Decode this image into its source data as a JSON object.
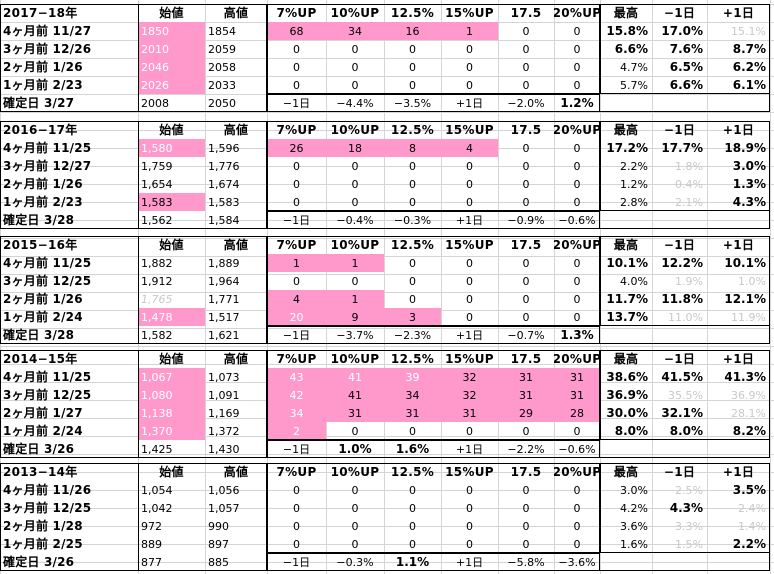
{
  "colors": {
    "highlight": "#ff99cc",
    "grid": "#d4d4d4",
    "muted": "#c8c8c8"
  },
  "headers": [
    "始値",
    "高値",
    "7%UP",
    "10%UP",
    "12.5%",
    "15%UP",
    "17.5",
    "20%UP",
    "最高",
    "−1日",
    "+1日"
  ],
  "sections": [
    {
      "year": "2017−18年",
      "rows": [
        {
          "label": "4ヶ月前 11/27",
          "cells": [
            {
              "v": "1850",
              "s": "pw"
            },
            {
              "v": "1854"
            },
            {
              "v": "68",
              "s": "p"
            },
            {
              "v": "34",
              "s": "p"
            },
            {
              "v": "16",
              "s": "p"
            },
            {
              "v": "1",
              "s": "p"
            },
            {
              "v": "0"
            },
            {
              "v": "0"
            },
            {
              "v": "15.8%",
              "s": "b"
            },
            {
              "v": "17.0%",
              "s": "b"
            },
            {
              "v": "15.1%",
              "s": "g"
            }
          ]
        },
        {
          "label": "3ヶ月前 12/26",
          "cells": [
            {
              "v": "2010",
              "s": "pw"
            },
            {
              "v": "2059"
            },
            {
              "v": "0"
            },
            {
              "v": "0"
            },
            {
              "v": "0"
            },
            {
              "v": "0"
            },
            {
              "v": "0"
            },
            {
              "v": "0"
            },
            {
              "v": "6.6%",
              "s": "b"
            },
            {
              "v": "7.6%",
              "s": "b"
            },
            {
              "v": "8.7%",
              "s": "b"
            }
          ]
        },
        {
          "label": "2ヶ月前 1/26",
          "cells": [
            {
              "v": "2046",
              "s": "pw"
            },
            {
              "v": "2058"
            },
            {
              "v": "0"
            },
            {
              "v": "0"
            },
            {
              "v": "0"
            },
            {
              "v": "0"
            },
            {
              "v": "0"
            },
            {
              "v": "0"
            },
            {
              "v": "4.7%"
            },
            {
              "v": "6.5%",
              "s": "b"
            },
            {
              "v": "6.2%",
              "s": "b"
            }
          ]
        },
        {
          "label": "1ヶ月前 2/23",
          "cells": [
            {
              "v": "2026",
              "s": "pw"
            },
            {
              "v": "2033"
            },
            {
              "v": "0"
            },
            {
              "v": "0"
            },
            {
              "v": "0"
            },
            {
              "v": "0"
            },
            {
              "v": "0"
            },
            {
              "v": "0"
            },
            {
              "v": "5.7%"
            },
            {
              "v": "6.6%",
              "s": "b"
            },
            {
              "v": "6.1%",
              "s": "b"
            }
          ]
        },
        {
          "label": "確定日 3/27",
          "cells": [
            {
              "v": "2008"
            },
            {
              "v": "2050"
            },
            {
              "v": "−1日"
            },
            {
              "v": "−4.4%"
            },
            {
              "v": "−3.5%"
            },
            {
              "v": "+1日"
            },
            {
              "v": "−2.0%"
            },
            {
              "v": "1.2%",
              "s": "b"
            },
            {
              "v": ""
            },
            {
              "v": ""
            },
            {
              "v": ""
            }
          ]
        }
      ]
    },
    {
      "year": "2016−17年",
      "rows": [
        {
          "label": "4ヶ月前 11/25",
          "cells": [
            {
              "v": "1,580",
              "s": "pw"
            },
            {
              "v": "1,596"
            },
            {
              "v": "26",
              "s": "p"
            },
            {
              "v": "18",
              "s": "p"
            },
            {
              "v": "8",
              "s": "p"
            },
            {
              "v": "4",
              "s": "p"
            },
            {
              "v": "0"
            },
            {
              "v": "0"
            },
            {
              "v": "17.2%",
              "s": "b"
            },
            {
              "v": "17.7%",
              "s": "b"
            },
            {
              "v": "18.9%",
              "s": "b"
            }
          ]
        },
        {
          "label": "3ヶ月前 12/27",
          "cells": [
            {
              "v": "1,759"
            },
            {
              "v": "1,776"
            },
            {
              "v": "0"
            },
            {
              "v": "0"
            },
            {
              "v": "0"
            },
            {
              "v": "0"
            },
            {
              "v": "0"
            },
            {
              "v": "0"
            },
            {
              "v": "2.2%"
            },
            {
              "v": "1.8%",
              "s": "g"
            },
            {
              "v": "3.0%",
              "s": "b"
            }
          ]
        },
        {
          "label": "2ヶ月前 1/26",
          "cells": [
            {
              "v": "1,654"
            },
            {
              "v": "1,674"
            },
            {
              "v": "0"
            },
            {
              "v": "0"
            },
            {
              "v": "0"
            },
            {
              "v": "0"
            },
            {
              "v": "0"
            },
            {
              "v": "0"
            },
            {
              "v": "1.2%"
            },
            {
              "v": "0.4%",
              "s": "g"
            },
            {
              "v": "1.3%",
              "s": "b"
            }
          ]
        },
        {
          "label": "1ヶ月前 2/23",
          "cells": [
            {
              "v": "1,583",
              "s": "p"
            },
            {
              "v": "1,583"
            },
            {
              "v": "0"
            },
            {
              "v": "0"
            },
            {
              "v": "0"
            },
            {
              "v": "0"
            },
            {
              "v": "0"
            },
            {
              "v": "0"
            },
            {
              "v": "2.8%"
            },
            {
              "v": "2.1%",
              "s": "g"
            },
            {
              "v": "4.3%",
              "s": "b"
            }
          ]
        },
        {
          "label": "確定日 3/28",
          "cells": [
            {
              "v": "1,562"
            },
            {
              "v": "1,584"
            },
            {
              "v": "−1日"
            },
            {
              "v": "−0.4%"
            },
            {
              "v": "−0.3%"
            },
            {
              "v": "+1日"
            },
            {
              "v": "−0.9%"
            },
            {
              "v": "−0.6%"
            },
            {
              "v": ""
            },
            {
              "v": ""
            },
            {
              "v": ""
            }
          ]
        }
      ]
    },
    {
      "year": "2015−16年",
      "rows": [
        {
          "label": "4ヶ月前 11/25",
          "cells": [
            {
              "v": "1,882"
            },
            {
              "v": "1,889"
            },
            {
              "v": "1",
              "s": "p"
            },
            {
              "v": "1",
              "s": "p"
            },
            {
              "v": "0"
            },
            {
              "v": "0"
            },
            {
              "v": "0"
            },
            {
              "v": "0"
            },
            {
              "v": "10.1%",
              "s": "b"
            },
            {
              "v": "12.2%",
              "s": "b"
            },
            {
              "v": "10.1%",
              "s": "b"
            }
          ]
        },
        {
          "label": "3ヶ月前 12/25",
          "cells": [
            {
              "v": "1,912"
            },
            {
              "v": "1,964"
            },
            {
              "v": "0"
            },
            {
              "v": "0"
            },
            {
              "v": "0"
            },
            {
              "v": "0"
            },
            {
              "v": "0"
            },
            {
              "v": "0"
            },
            {
              "v": "4.0%"
            },
            {
              "v": "1.9%",
              "s": "g"
            },
            {
              "v": "1.0%",
              "s": "g"
            }
          ]
        },
        {
          "label": "2ヶ月前 1/26",
          "cells": [
            {
              "v": "1,765",
              "s": "gi"
            },
            {
              "v": "1,771"
            },
            {
              "v": "4",
              "s": "p"
            },
            {
              "v": "1",
              "s": "p"
            },
            {
              "v": "0"
            },
            {
              "v": "0"
            },
            {
              "v": "0"
            },
            {
              "v": "0"
            },
            {
              "v": "11.7%",
              "s": "b"
            },
            {
              "v": "11.8%",
              "s": "b"
            },
            {
              "v": "12.1%",
              "s": "b"
            }
          ]
        },
        {
          "label": "1ヶ月前 2/24",
          "cells": [
            {
              "v": "1,478",
              "s": "pw"
            },
            {
              "v": "1,517"
            },
            {
              "v": "20",
              "s": "pw"
            },
            {
              "v": "9",
              "s": "p"
            },
            {
              "v": "3",
              "s": "p"
            },
            {
              "v": "0"
            },
            {
              "v": "0"
            },
            {
              "v": "0"
            },
            {
              "v": "13.7%",
              "s": "b"
            },
            {
              "v": "11.0%",
              "s": "g"
            },
            {
              "v": "11.9%",
              "s": "g"
            }
          ]
        },
        {
          "label": "確定日 3/28",
          "cells": [
            {
              "v": "1,582"
            },
            {
              "v": "1,621"
            },
            {
              "v": "−1日"
            },
            {
              "v": "−3.7%"
            },
            {
              "v": "−2.3%"
            },
            {
              "v": "+1日"
            },
            {
              "v": "−0.7%"
            },
            {
              "v": "1.3%",
              "s": "b"
            },
            {
              "v": ""
            },
            {
              "v": ""
            },
            {
              "v": ""
            }
          ]
        }
      ]
    },
    {
      "year": "2014−15年",
      "rows": [
        {
          "label": "4ヶ月前 11/25",
          "cells": [
            {
              "v": "1,067",
              "s": "pw"
            },
            {
              "v": "1,073"
            },
            {
              "v": "43",
              "s": "pw"
            },
            {
              "v": "41",
              "s": "pw"
            },
            {
              "v": "39",
              "s": "pw"
            },
            {
              "v": "32",
              "s": "p"
            },
            {
              "v": "31",
              "s": "p"
            },
            {
              "v": "31",
              "s": "p"
            },
            {
              "v": "38.6%",
              "s": "b"
            },
            {
              "v": "41.5%",
              "s": "b"
            },
            {
              "v": "41.3%",
              "s": "b"
            }
          ]
        },
        {
          "label": "3ヶ月前 12/25",
          "cells": [
            {
              "v": "1,080",
              "s": "pw"
            },
            {
              "v": "1,091"
            },
            {
              "v": "42",
              "s": "pw"
            },
            {
              "v": "41",
              "s": "p"
            },
            {
              "v": "34",
              "s": "p"
            },
            {
              "v": "32",
              "s": "p"
            },
            {
              "v": "31",
              "s": "p"
            },
            {
              "v": "31",
              "s": "p"
            },
            {
              "v": "36.9%",
              "s": "b"
            },
            {
              "v": "35.5%",
              "s": "g"
            },
            {
              "v": "36.9%",
              "s": "g"
            }
          ]
        },
        {
          "label": "2ヶ月前 1/27",
          "cells": [
            {
              "v": "1,138",
              "s": "pw"
            },
            {
              "v": "1,169"
            },
            {
              "v": "34",
              "s": "pw"
            },
            {
              "v": "31",
              "s": "p"
            },
            {
              "v": "31",
              "s": "p"
            },
            {
              "v": "31",
              "s": "p"
            },
            {
              "v": "29",
              "s": "p"
            },
            {
              "v": "28",
              "s": "p"
            },
            {
              "v": "30.0%",
              "s": "b"
            },
            {
              "v": "32.1%",
              "s": "b"
            },
            {
              "v": "28.1%",
              "s": "g"
            }
          ]
        },
        {
          "label": "1ヶ月前 2/24",
          "cells": [
            {
              "v": "1,370",
              "s": "pw"
            },
            {
              "v": "1,372"
            },
            {
              "v": "2",
              "s": "pw"
            },
            {
              "v": "0"
            },
            {
              "v": "0"
            },
            {
              "v": "0"
            },
            {
              "v": "0"
            },
            {
              "v": "0"
            },
            {
              "v": "8.0%",
              "s": "b"
            },
            {
              "v": "8.0%",
              "s": "b"
            },
            {
              "v": "8.2%",
              "s": "b"
            }
          ]
        },
        {
          "label": "確定日 3/26",
          "cells": [
            {
              "v": "1,425"
            },
            {
              "v": "1,430"
            },
            {
              "v": "−1日"
            },
            {
              "v": "1.0%",
              "s": "b"
            },
            {
              "v": "1.6%",
              "s": "b"
            },
            {
              "v": "+1日"
            },
            {
              "v": "−2.2%"
            },
            {
              "v": "−0.6%"
            },
            {
              "v": ""
            },
            {
              "v": ""
            },
            {
              "v": ""
            }
          ]
        }
      ]
    },
    {
      "year": "2013−14年",
      "rows": [
        {
          "label": "4ヶ月前 11/26",
          "cells": [
            {
              "v": "1,054"
            },
            {
              "v": "1,056"
            },
            {
              "v": "0"
            },
            {
              "v": "0"
            },
            {
              "v": "0"
            },
            {
              "v": "0"
            },
            {
              "v": "0"
            },
            {
              "v": "0"
            },
            {
              "v": "3.0%"
            },
            {
              "v": "2.5%",
              "s": "g"
            },
            {
              "v": "3.5%",
              "s": "b"
            }
          ]
        },
        {
          "label": "3ヶ月前 12/25",
          "cells": [
            {
              "v": "1,042"
            },
            {
              "v": "1,057"
            },
            {
              "v": "0"
            },
            {
              "v": "0"
            },
            {
              "v": "0"
            },
            {
              "v": "0"
            },
            {
              "v": "0"
            },
            {
              "v": "0"
            },
            {
              "v": "4.2%"
            },
            {
              "v": "4.3%",
              "s": "b"
            },
            {
              "v": "2.4%",
              "s": "g"
            }
          ]
        },
        {
          "label": "2ヶ月前 1/28",
          "cells": [
            {
              "v": "972"
            },
            {
              "v": "990"
            },
            {
              "v": "0"
            },
            {
              "v": "0"
            },
            {
              "v": "0"
            },
            {
              "v": "0"
            },
            {
              "v": "0"
            },
            {
              "v": "0"
            },
            {
              "v": "3.6%"
            },
            {
              "v": "3.3%",
              "s": "g"
            },
            {
              "v": "1.4%",
              "s": "g"
            }
          ]
        },
        {
          "label": "1ヶ月前 2/25",
          "cells": [
            {
              "v": "889"
            },
            {
              "v": "897"
            },
            {
              "v": "0"
            },
            {
              "v": "0"
            },
            {
              "v": "0"
            },
            {
              "v": "0"
            },
            {
              "v": "0"
            },
            {
              "v": "0"
            },
            {
              "v": "1.6%"
            },
            {
              "v": "1.5%",
              "s": "g"
            },
            {
              "v": "2.2%",
              "s": "b"
            }
          ]
        },
        {
          "label": "確定日 3/26",
          "cells": [
            {
              "v": "877"
            },
            {
              "v": "885"
            },
            {
              "v": "−1日"
            },
            {
              "v": "−0.3%"
            },
            {
              "v": "1.1%",
              "s": "b"
            },
            {
              "v": "+1日"
            },
            {
              "v": "−5.8%"
            },
            {
              "v": "−3.6%"
            },
            {
              "v": ""
            },
            {
              "v": ""
            },
            {
              "v": ""
            }
          ]
        }
      ]
    }
  ]
}
